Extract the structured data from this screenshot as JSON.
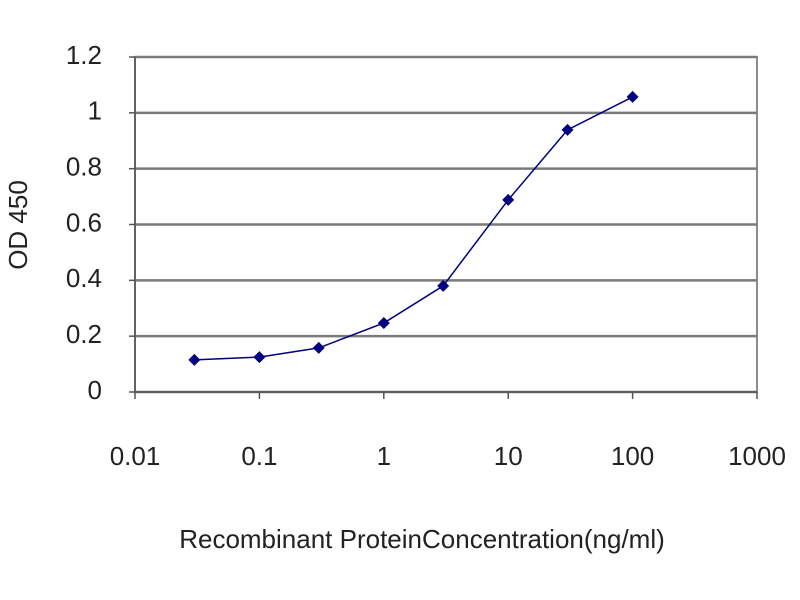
{
  "chart_data": {
    "type": "line",
    "x_label": "Recombinant ProteinConcentration(ng/ml)",
    "y_label": "OD 450",
    "x": [
      0.03,
      0.1,
      0.3,
      1,
      3,
      10,
      30,
      100
    ],
    "values": [
      0.115,
      0.125,
      0.158,
      0.247,
      0.38,
      0.688,
      0.939,
      1.057
    ],
    "color": "#000080",
    "xscale": "log",
    "xlim": [
      0.01,
      1000
    ],
    "xticks": [
      0.01,
      0.1,
      1,
      10,
      100,
      1000
    ],
    "ylim": [
      0,
      1.2
    ],
    "yticks": [
      0,
      0.2,
      0.4,
      0.6,
      0.8,
      1,
      1.2
    ],
    "grid": true
  }
}
